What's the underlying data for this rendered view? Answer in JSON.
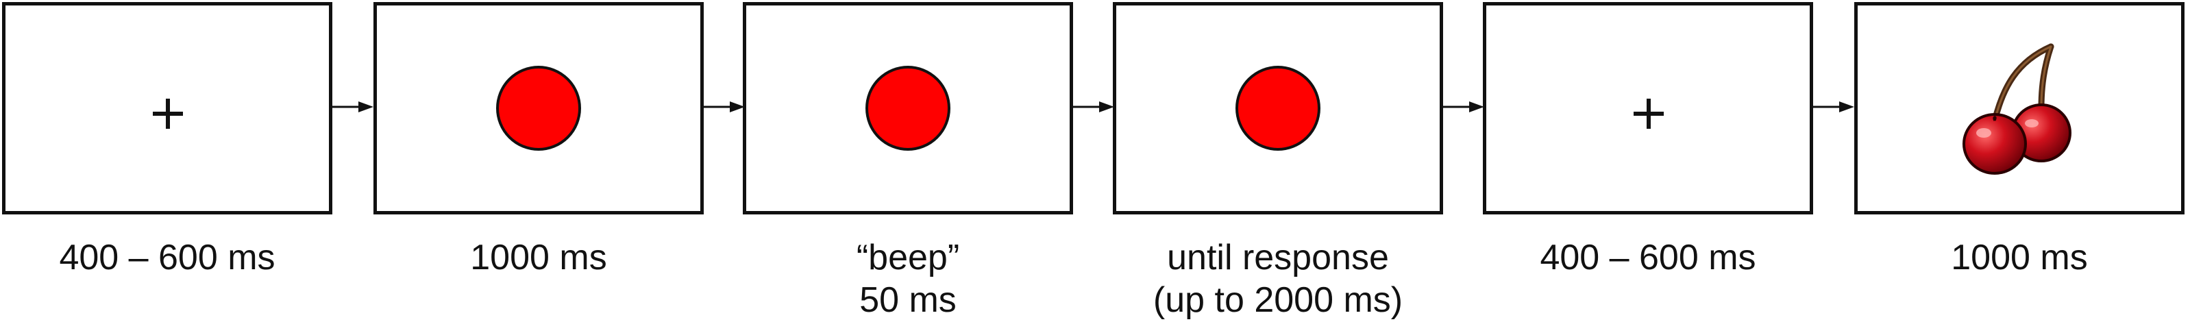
{
  "frames": [
    {
      "stimulus": "fixation-cross",
      "caption": [
        "400 – 600 ms"
      ]
    },
    {
      "stimulus": "red-circle",
      "caption": [
        "1000 ms"
      ]
    },
    {
      "stimulus": "red-circle",
      "caption": [
        "“beep”",
        "50 ms"
      ]
    },
    {
      "stimulus": "red-circle",
      "caption": [
        "until response",
        "(up to 2000 ms)"
      ]
    },
    {
      "stimulus": "fixation-cross",
      "caption": [
        "400 – 600 ms"
      ]
    },
    {
      "stimulus": "cherries",
      "caption": [
        "1000 ms"
      ]
    }
  ],
  "colors": {
    "stimulus_red": "#ff0000",
    "outline": "#111111",
    "cherry_red": "#c8101a",
    "stem": "#4a2a14"
  }
}
